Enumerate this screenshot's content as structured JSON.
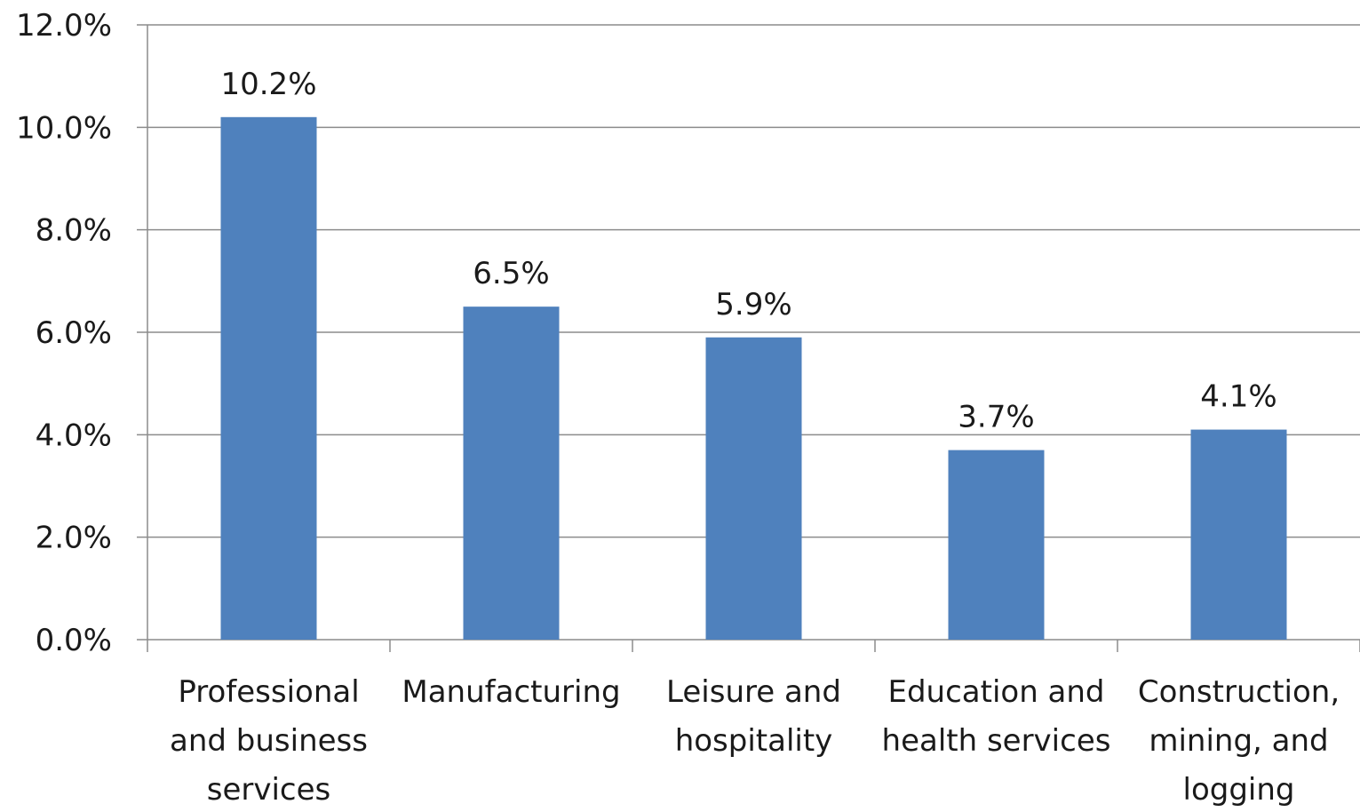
{
  "chart_data": {
    "type": "bar",
    "categories": [
      [
        "Professional",
        "and business",
        "services"
      ],
      [
        "Manufacturing"
      ],
      [
        "Leisure and",
        "hospitality"
      ],
      [
        "Education and",
        "health services"
      ],
      [
        "Construction,",
        "mining, and",
        "logging"
      ]
    ],
    "values": [
      10.2,
      6.5,
      5.9,
      3.7,
      4.1
    ],
    "data_labels": [
      "10.2%",
      "6.5%",
      "5.9%",
      "3.7%",
      "4.1%"
    ],
    "y_ticks": [
      "0.0%",
      "2.0%",
      "4.0%",
      "6.0%",
      "8.0%",
      "10.0%",
      "12.0%"
    ],
    "ylim": [
      0,
      12
    ],
    "grid": true,
    "bar_color": "#4f81bd",
    "grid_color": "#8c8c8c",
    "title": "",
    "xlabel": "",
    "ylabel": ""
  }
}
